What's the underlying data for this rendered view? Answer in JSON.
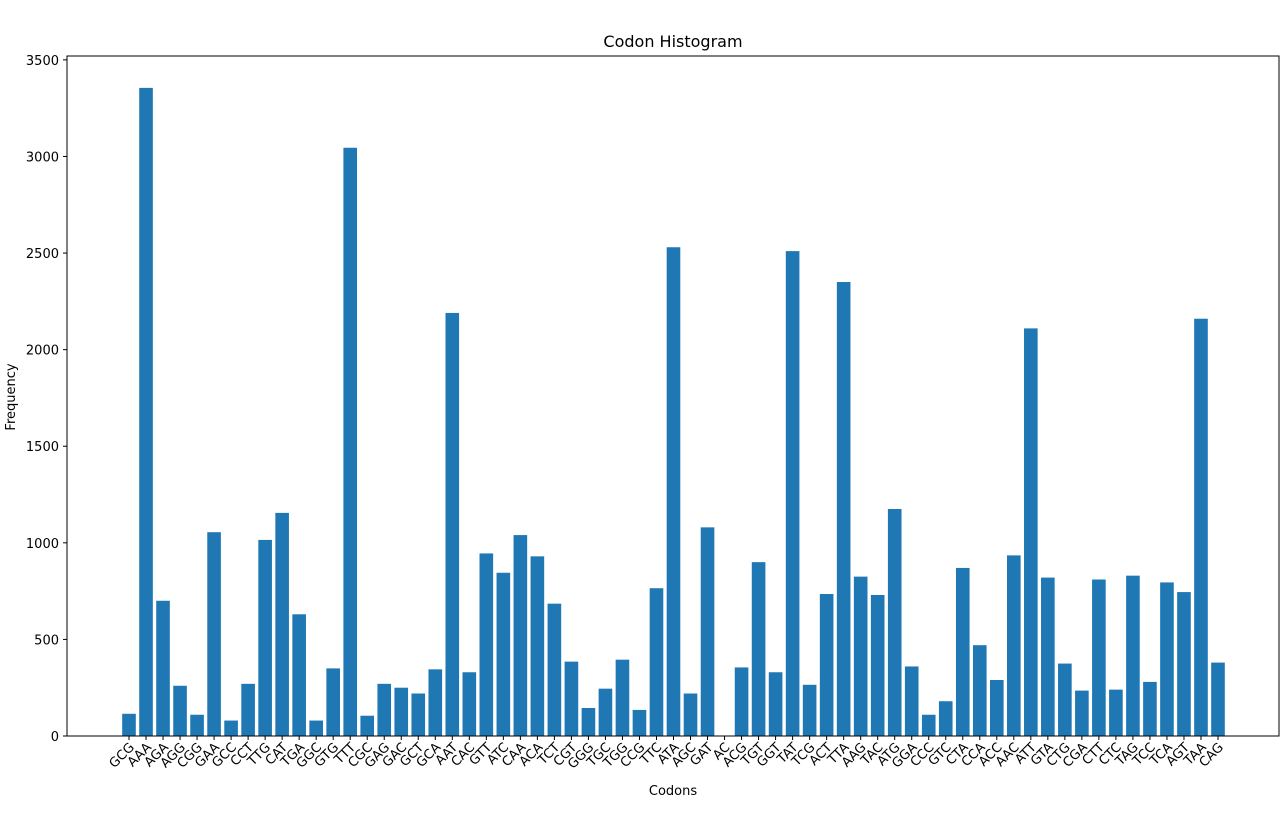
{
  "chart_data": {
    "type": "bar",
    "title": "Codon Histogram",
    "xlabel": "Codons",
    "ylabel": "Frequency",
    "ylim": [
      0,
      3520
    ],
    "yticks": [
      0,
      500,
      1000,
      1500,
      2000,
      2500,
      3000,
      3500
    ],
    "grid": false,
    "bar_color": "#1f77b4",
    "categories": [
      "GCG",
      "AAA",
      "AGA",
      "AGG",
      "CGG",
      "GAA",
      "GCC",
      "CCT",
      "TTG",
      "CAT",
      "TGA",
      "GGC",
      "GTG",
      "TTT",
      "CGC",
      "GAG",
      "GAC",
      "GCT",
      "GCA",
      "AAT",
      "CAC",
      "GTT",
      "ATC",
      "CAA",
      "ACA",
      "TCT",
      "CGT",
      "GGG",
      "TGC",
      "TGG",
      "CCG",
      "TTC",
      "ATA",
      "AGC",
      "GAT",
      "AC",
      "ACG",
      "TGT",
      "GGT",
      "TAT",
      "TCG",
      "ACT",
      "TTA",
      "AAG",
      "TAC",
      "ATG",
      "GGA",
      "CCC",
      "GTC",
      "CTA",
      "CCA",
      "ACC",
      "AAC",
      "ATT",
      "GTA",
      "CTG",
      "CGA",
      "CTT",
      "CTC",
      "TAG",
      "TCC",
      "TCA",
      "AGT",
      "TAA",
      "CAG"
    ],
    "values": [
      115,
      3355,
      700,
      260,
      110,
      1055,
      80,
      270,
      1015,
      1155,
      630,
      80,
      350,
      3045,
      105,
      270,
      250,
      220,
      345,
      2190,
      330,
      945,
      845,
      1040,
      930,
      685,
      385,
      145,
      245,
      395,
      135,
      765,
      2530,
      220,
      1080,
      0,
      355,
      900,
      330,
      2510,
      265,
      735,
      2350,
      825,
      730,
      1175,
      360,
      110,
      180,
      870,
      470,
      290,
      935,
      2110,
      820,
      375,
      235,
      810,
      240,
      830,
      280,
      795,
      745,
      2160,
      380
    ]
  }
}
